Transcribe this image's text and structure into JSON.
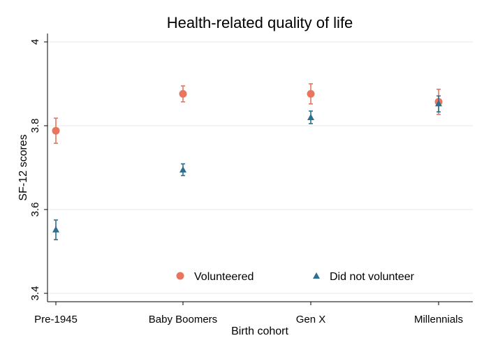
{
  "chart_data": {
    "type": "scatter",
    "title": "Health-related quality of life",
    "xlabel": "Birth cohort",
    "ylabel": "SF-12 scores",
    "categories": [
      "Pre-1945",
      "Baby Boomers",
      "Gen X",
      "Millennials"
    ],
    "ylim": [
      3.4,
      4.0
    ],
    "yticks": [
      3.4,
      3.6,
      3.8,
      4.0
    ],
    "ytick_labels": [
      "3.4",
      "3.6",
      "3.8",
      "4"
    ],
    "grid": true,
    "legend_position": "bottom-center",
    "series": [
      {
        "name": "Volunteered",
        "marker": "circle",
        "color": "#e8765e",
        "values": [
          3.788,
          3.876,
          3.876,
          3.857
        ],
        "ci_low": [
          3.758,
          3.857,
          3.852,
          3.827
        ],
        "ci_high": [
          3.818,
          3.895,
          3.9,
          3.887
        ]
      },
      {
        "name": "Did not volunteer",
        "marker": "triangle",
        "color": "#2e6e8e",
        "values": [
          3.552,
          3.695,
          3.82,
          3.853
        ],
        "ci_low": [
          3.528,
          3.681,
          3.805,
          3.833
        ],
        "ci_high": [
          3.575,
          3.709,
          3.835,
          3.871
        ]
      }
    ]
  }
}
